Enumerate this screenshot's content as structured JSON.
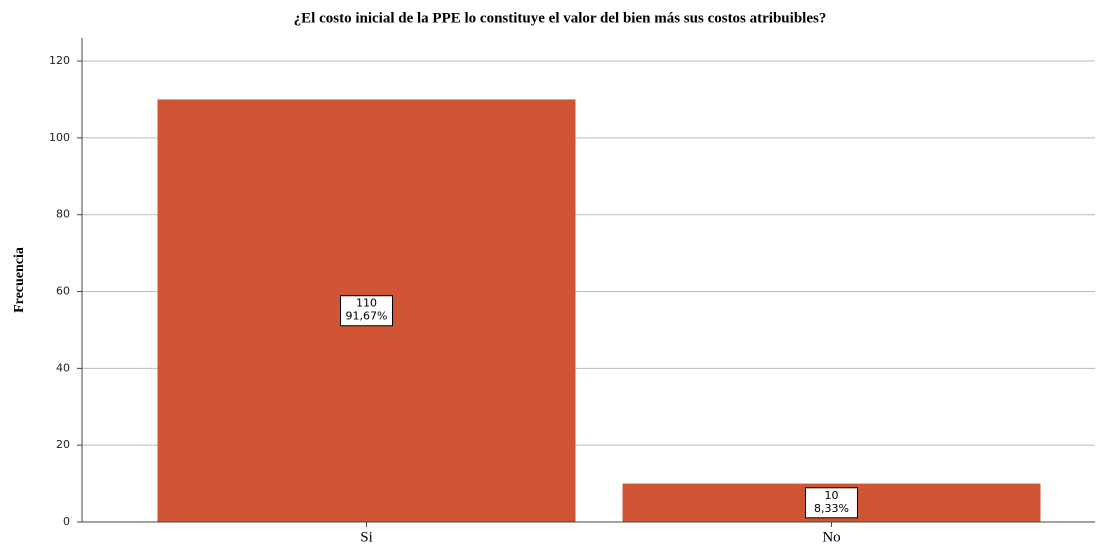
{
  "chart_data": {
    "type": "bar",
    "title": "¿El costo inicial de la PPE lo constituye el valor del bien más sus costos atribuibles?",
    "ylabel": "Frecuencia",
    "categories": [
      "Si",
      "No"
    ],
    "values": [
      110,
      10
    ],
    "percent_labels": [
      "91,67%",
      "8,33%"
    ],
    "color": "#d05535",
    "ylim": [
      0,
      126
    ],
    "yticks": [
      0,
      20,
      40,
      60,
      80,
      100,
      120
    ],
    "grid": true
  }
}
